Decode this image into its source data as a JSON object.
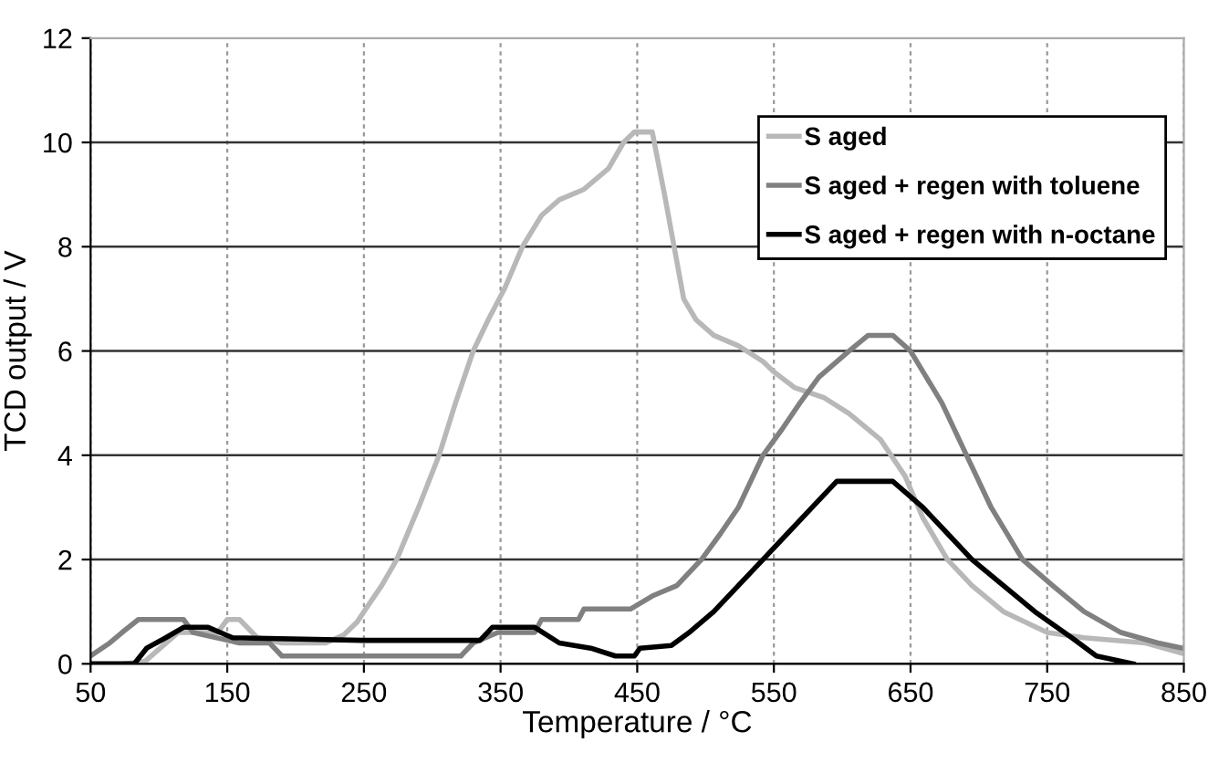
{
  "chart_data": {
    "type": "line",
    "xlabel": "Temperature / °C",
    "ylabel": "TCD output / V",
    "xlim": [
      50,
      850
    ],
    "xticks": [
      50,
      150,
      250,
      350,
      450,
      550,
      650,
      750,
      850
    ],
    "ylim": [
      0,
      12
    ],
    "yticks": [
      0,
      2,
      4,
      6,
      8,
      10,
      12
    ],
    "grid": true,
    "legend": "top right",
    "marker": "none",
    "line_style": "solid",
    "series": [
      {
        "name": "S aged",
        "color": "#b8b8b8",
        "x": [
          75,
          90,
          114,
          143,
          150,
          159,
          172,
          190,
          222,
          235,
          245,
          250,
          263,
          274,
          290,
          305,
          317,
          330,
          341,
          353,
          366,
          380,
          393,
          411,
          429,
          440,
          448,
          461,
          470,
          477,
          484,
          493,
          506,
          524,
          542,
          550,
          565,
          587,
          605,
          628,
          646,
          659,
          677,
          695,
          718,
          750,
          777,
          822,
          849
        ],
        "values": [
          0,
          0.05,
          0.6,
          0.6,
          0.85,
          0.85,
          0.5,
          0.4,
          0.4,
          0.55,
          0.8,
          1.0,
          1.5,
          2.0,
          3.0,
          4.0,
          5.0,
          6.0,
          6.6,
          7.2,
          8.0,
          8.6,
          8.9,
          9.1,
          9.5,
          10.0,
          10.2,
          10.2,
          9.0,
          8.0,
          7.0,
          6.6,
          6.3,
          6.1,
          5.8,
          5.6,
          5.3,
          5.1,
          4.8,
          4.3,
          3.6,
          2.8,
          2.0,
          1.5,
          1.0,
          0.6,
          0.5,
          0.4,
          0.2
        ]
      },
      {
        "name": "S aged + regen with toluene",
        "color": "#808080",
        "x": [
          50,
          64,
          73,
          85,
          118,
          125,
          159,
          181,
          190,
          321,
          330,
          348,
          375,
          380,
          407,
          411,
          445,
          461,
          479,
          497,
          511,
          524,
          542,
          556,
          569,
          583,
          605,
          619,
          637,
          650,
          673,
          691,
          709,
          732,
          754,
          777,
          804,
          831,
          849
        ],
        "values": [
          0.15,
          0.4,
          0.6,
          0.85,
          0.85,
          0.6,
          0.4,
          0.4,
          0.15,
          0.15,
          0.4,
          0.6,
          0.6,
          0.85,
          0.85,
          1.05,
          1.05,
          1.3,
          1.5,
          2.0,
          2.5,
          3.0,
          4.0,
          4.5,
          5.0,
          5.5,
          6.0,
          6.3,
          6.3,
          6.0,
          5.0,
          4.0,
          3.0,
          2.0,
          1.5,
          1.0,
          0.6,
          0.4,
          0.3
        ]
      },
      {
        "name": "S aged + regen with n-octane",
        "color": "#000000",
        "x": [
          50,
          82,
          91,
          105,
          118,
          136,
          154,
          249,
          335,
          344,
          375,
          393,
          416,
          434,
          448,
          452,
          475,
          488,
          506,
          524,
          542,
          560,
          578,
          596,
          637,
          659,
          677,
          695,
          718,
          741,
          768,
          786,
          813
        ],
        "values": [
          0,
          0,
          0.3,
          0.5,
          0.7,
          0.7,
          0.5,
          0.45,
          0.45,
          0.7,
          0.7,
          0.4,
          0.3,
          0.15,
          0.15,
          0.3,
          0.35,
          0.6,
          1.0,
          1.5,
          2.0,
          2.5,
          3.0,
          3.5,
          3.5,
          3.0,
          2.5,
          2.0,
          1.5,
          1.0,
          0.5,
          0.15,
          0
        ]
      }
    ]
  }
}
